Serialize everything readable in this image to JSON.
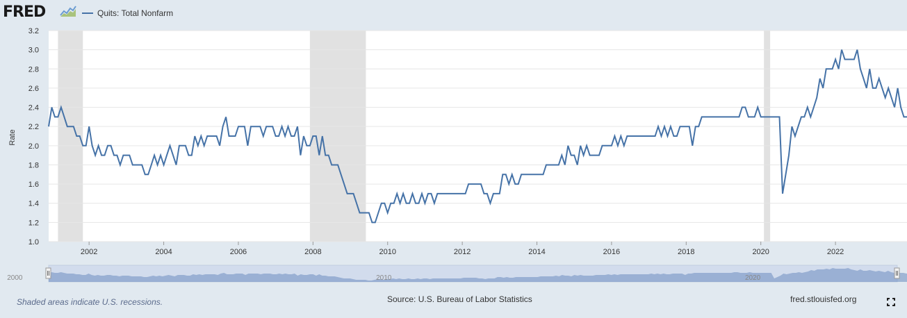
{
  "header": {
    "logo_text": "FRED",
    "logo_icon": "fred-chart-icon",
    "legend_label": "Quits: Total Nonfarm"
  },
  "footer": {
    "note": "Shaded areas indicate U.S. recessions.",
    "source": "Source: U.S. Bureau of Labor Statistics",
    "site": "fred.stlouisfed.org",
    "fullscreen_icon": "fullscreen-icon"
  },
  "colors": {
    "background": "#e1e9f0",
    "plot_background": "#ffffff",
    "series_line": "#4572a7",
    "recession_shade": "#e1e1e1",
    "navigator_fill": "#b5c6e2"
  },
  "chart_data": {
    "type": "line",
    "title": "",
    "xlabel": "",
    "ylabel": "Rate",
    "ylim": [
      1.0,
      3.2
    ],
    "xlim": [
      "2000-12",
      "2023-12"
    ],
    "grid": true,
    "y_ticks": [
      1.0,
      1.2,
      1.4,
      1.6,
      1.8,
      2.0,
      2.2,
      2.4,
      2.6,
      2.8,
      3.0,
      3.2
    ],
    "x_ticks": [
      2002,
      2004,
      2006,
      2008,
      2010,
      2012,
      2014,
      2016,
      2018,
      2020,
      2022
    ],
    "navigator_labels": [
      "2000",
      "2010",
      "2020"
    ],
    "recessions": [
      {
        "start": "2001-03",
        "end": "2001-11"
      },
      {
        "start": "2007-12",
        "end": "2009-06"
      },
      {
        "start": "2020-02",
        "end": "2020-04"
      }
    ],
    "series": [
      {
        "name": "Quits: Total Nonfarm",
        "start": "2000-12",
        "values": [
          2.2,
          2.4,
          2.3,
          2.3,
          2.4,
          2.3,
          2.2,
          2.2,
          2.2,
          2.1,
          2.1,
          2.0,
          2.0,
          2.2,
          2.0,
          1.9,
          2.0,
          1.9,
          1.9,
          2.0,
          2.0,
          1.9,
          1.9,
          1.8,
          1.9,
          1.9,
          1.9,
          1.8,
          1.8,
          1.8,
          1.8,
          1.7,
          1.7,
          1.8,
          1.9,
          1.8,
          1.9,
          1.8,
          1.9,
          2.0,
          1.9,
          1.8,
          2.0,
          2.0,
          2.0,
          1.9,
          1.9,
          2.1,
          2.0,
          2.1,
          2.0,
          2.1,
          2.1,
          2.1,
          2.1,
          2.0,
          2.2,
          2.3,
          2.1,
          2.1,
          2.1,
          2.2,
          2.2,
          2.2,
          2.0,
          2.2,
          2.2,
          2.2,
          2.2,
          2.1,
          2.2,
          2.2,
          2.2,
          2.1,
          2.1,
          2.2,
          2.1,
          2.2,
          2.1,
          2.1,
          2.2,
          1.9,
          2.1,
          2.0,
          2.0,
          2.1,
          2.1,
          1.9,
          2.1,
          1.9,
          1.9,
          1.8,
          1.8,
          1.8,
          1.7,
          1.6,
          1.5,
          1.5,
          1.5,
          1.4,
          1.3,
          1.3,
          1.3,
          1.3,
          1.2,
          1.2,
          1.3,
          1.4,
          1.4,
          1.3,
          1.4,
          1.4,
          1.5,
          1.4,
          1.5,
          1.4,
          1.4,
          1.5,
          1.4,
          1.4,
          1.5,
          1.4,
          1.5,
          1.5,
          1.4,
          1.5,
          1.5,
          1.5,
          1.5,
          1.5,
          1.5,
          1.5,
          1.5,
          1.5,
          1.5,
          1.6,
          1.6,
          1.6,
          1.6,
          1.6,
          1.5,
          1.5,
          1.4,
          1.5,
          1.5,
          1.5,
          1.7,
          1.7,
          1.6,
          1.7,
          1.6,
          1.6,
          1.7,
          1.7,
          1.7,
          1.7,
          1.7,
          1.7,
          1.7,
          1.7,
          1.8,
          1.8,
          1.8,
          1.8,
          1.8,
          1.9,
          1.8,
          2.0,
          1.9,
          1.9,
          1.8,
          2.0,
          1.9,
          2.0,
          1.9,
          1.9,
          1.9,
          1.9,
          2.0,
          2.0,
          2.0,
          2.0,
          2.1,
          2.0,
          2.1,
          2.0,
          2.1,
          2.1,
          2.1,
          2.1,
          2.1,
          2.1,
          2.1,
          2.1,
          2.1,
          2.1,
          2.2,
          2.1,
          2.2,
          2.1,
          2.2,
          2.1,
          2.1,
          2.2,
          2.2,
          2.2,
          2.2,
          2.0,
          2.2,
          2.2,
          2.3,
          2.3,
          2.3,
          2.3,
          2.3,
          2.3,
          2.3,
          2.3,
          2.3,
          2.3,
          2.3,
          2.3,
          2.3,
          2.4,
          2.4,
          2.3,
          2.3,
          2.3,
          2.4,
          2.3,
          2.3,
          2.3,
          2.3,
          2.3,
          2.3,
          2.3,
          1.5,
          1.7,
          1.9,
          2.2,
          2.1,
          2.2,
          2.3,
          2.3,
          2.4,
          2.3,
          2.4,
          2.5,
          2.7,
          2.6,
          2.8,
          2.8,
          2.8,
          2.9,
          2.8,
          3.0,
          2.9,
          2.9,
          2.9,
          2.9,
          3.0,
          2.8,
          2.7,
          2.6,
          2.8,
          2.6,
          2.6,
          2.7,
          2.6,
          2.5,
          2.6,
          2.5,
          2.4,
          2.6,
          2.4,
          2.3,
          2.3,
          2.3,
          2.3,
          2.2,
          2.2
        ]
      }
    ]
  }
}
